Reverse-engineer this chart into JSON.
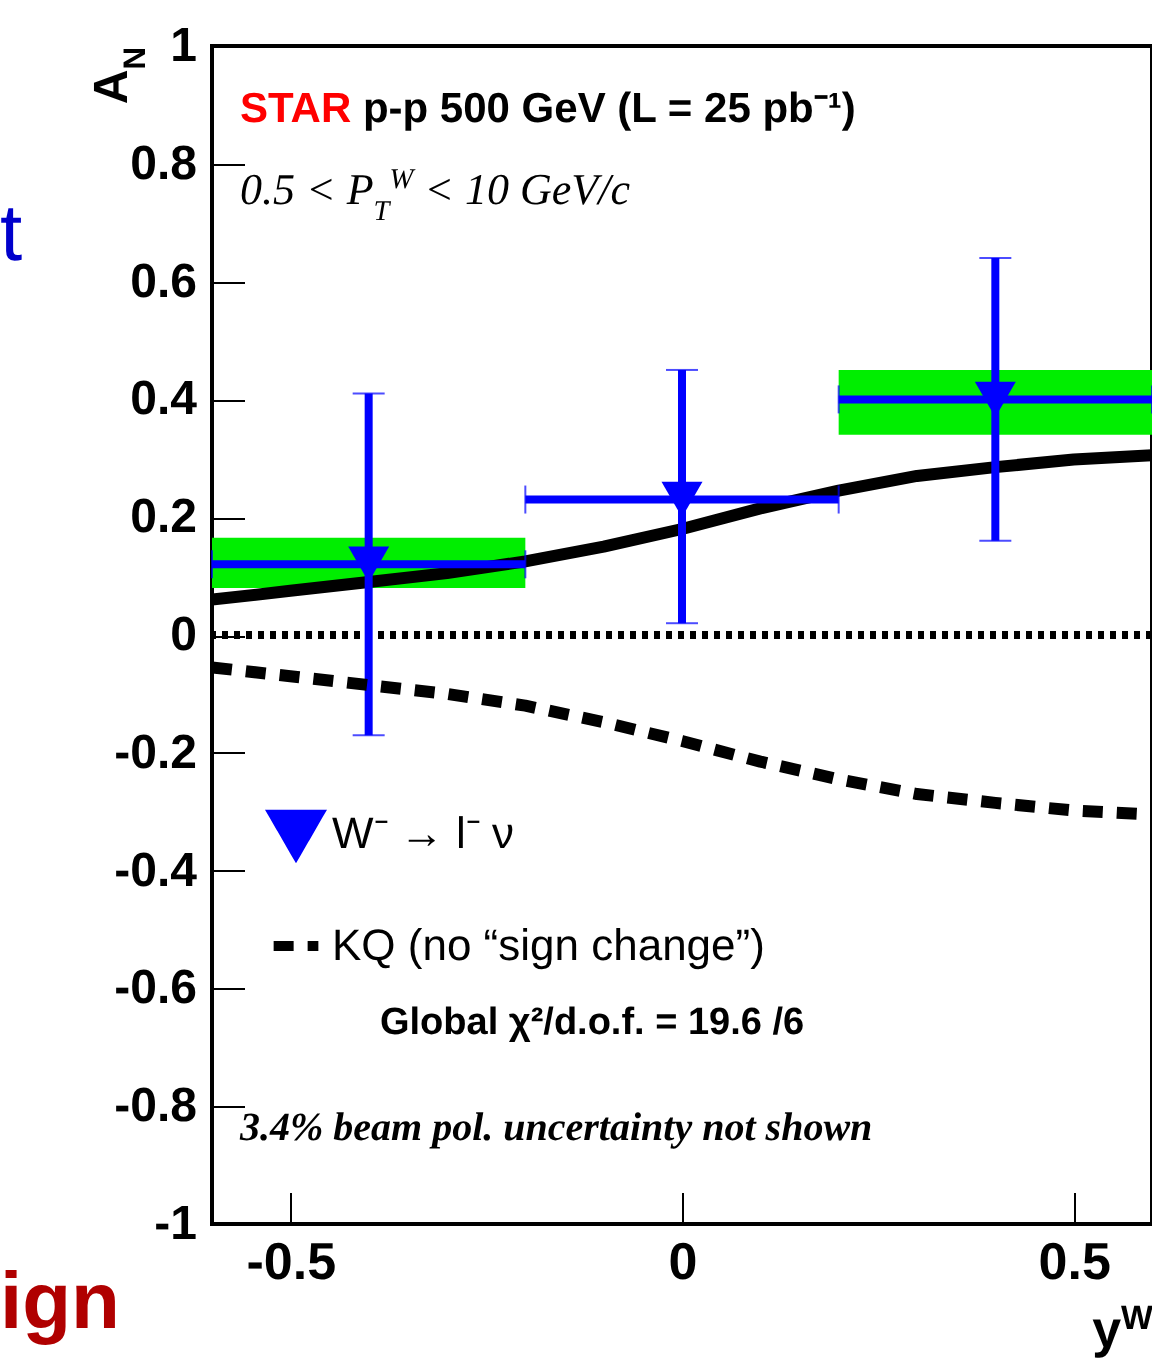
{
  "chart_data": {
    "type": "scatter",
    "xlabel": "y$^{W}$",
    "ylabel": "A$_{N}$",
    "xlim": [
      -0.6,
      0.6
    ],
    "xticks": [
      -0.5,
      0,
      0.5
    ],
    "ylim": [
      -1,
      1
    ],
    "yticks": [
      -1,
      -0.8,
      -0.6,
      -0.4,
      -0.2,
      0,
      0.2,
      0.4,
      0.6,
      0.8,
      1
    ],
    "legend": "bottom left",
    "ref_lines": [
      {
        "axis": "y",
        "value": 0,
        "line_style": "dotted",
        "color": "#000000"
      }
    ],
    "annotations": [
      "STAR p-p 500 GeV (L = 25 pb⁻¹)",
      "0.5 < P$_{T}$$^{W}$ < 10 GeV/c",
      "Global χ²/d.o.f. = 19.6  /6",
      "3.4% beam pol. uncertainty not shown",
      "t",
      "ign"
    ],
    "series": [
      {
        "type": "bar",
        "color": "#00ee00",
        "x": [
          -0.4,
          0,
          0.4
        ],
        "base": [
          0.08,
          null,
          0.34
        ],
        "values": [
          0.085,
          null,
          0.11
        ]
      },
      {
        "type": "line",
        "color": "#000000",
        "line_style": "solid",
        "x": [
          -0.6,
          -0.5,
          -0.4,
          -0.3,
          -0.2,
          -0.1,
          0,
          0.1,
          0.2,
          0.3,
          0.4,
          0.5,
          0.6
        ],
        "values": [
          0.06,
          0.075,
          0.09,
          0.105,
          0.125,
          0.15,
          0.18,
          0.215,
          0.245,
          0.27,
          0.285,
          0.298,
          0.305
        ]
      },
      {
        "name": "W⁻ → l⁻ ν",
        "color": "#0000ff",
        "marker": "triangle",
        "x": [
          -0.4,
          0,
          0.4
        ],
        "values": [
          0.12,
          0.23,
          0.4
        ],
        "errors": [
          [
            -0.17,
            0.41
          ],
          [
            0.02,
            0.45
          ],
          [
            0.16,
            0.64
          ]
        ],
        "xerrors": [
          0.2,
          0.2,
          0.2
        ]
      },
      {
        "type": "line",
        "name": "KQ (no “sign change”)",
        "color": "#000000",
        "line_style": "dashed",
        "x": [
          -0.6,
          -0.5,
          -0.4,
          -0.3,
          -0.2,
          -0.1,
          0,
          0.1,
          0.2,
          0.3,
          0.4,
          0.5,
          0.6
        ],
        "values": [
          -0.055,
          -0.07,
          -0.085,
          -0.1,
          -0.12,
          -0.148,
          -0.18,
          -0.215,
          -0.245,
          -0.27,
          -0.285,
          -0.298,
          -0.305
        ]
      }
    ]
  }
}
